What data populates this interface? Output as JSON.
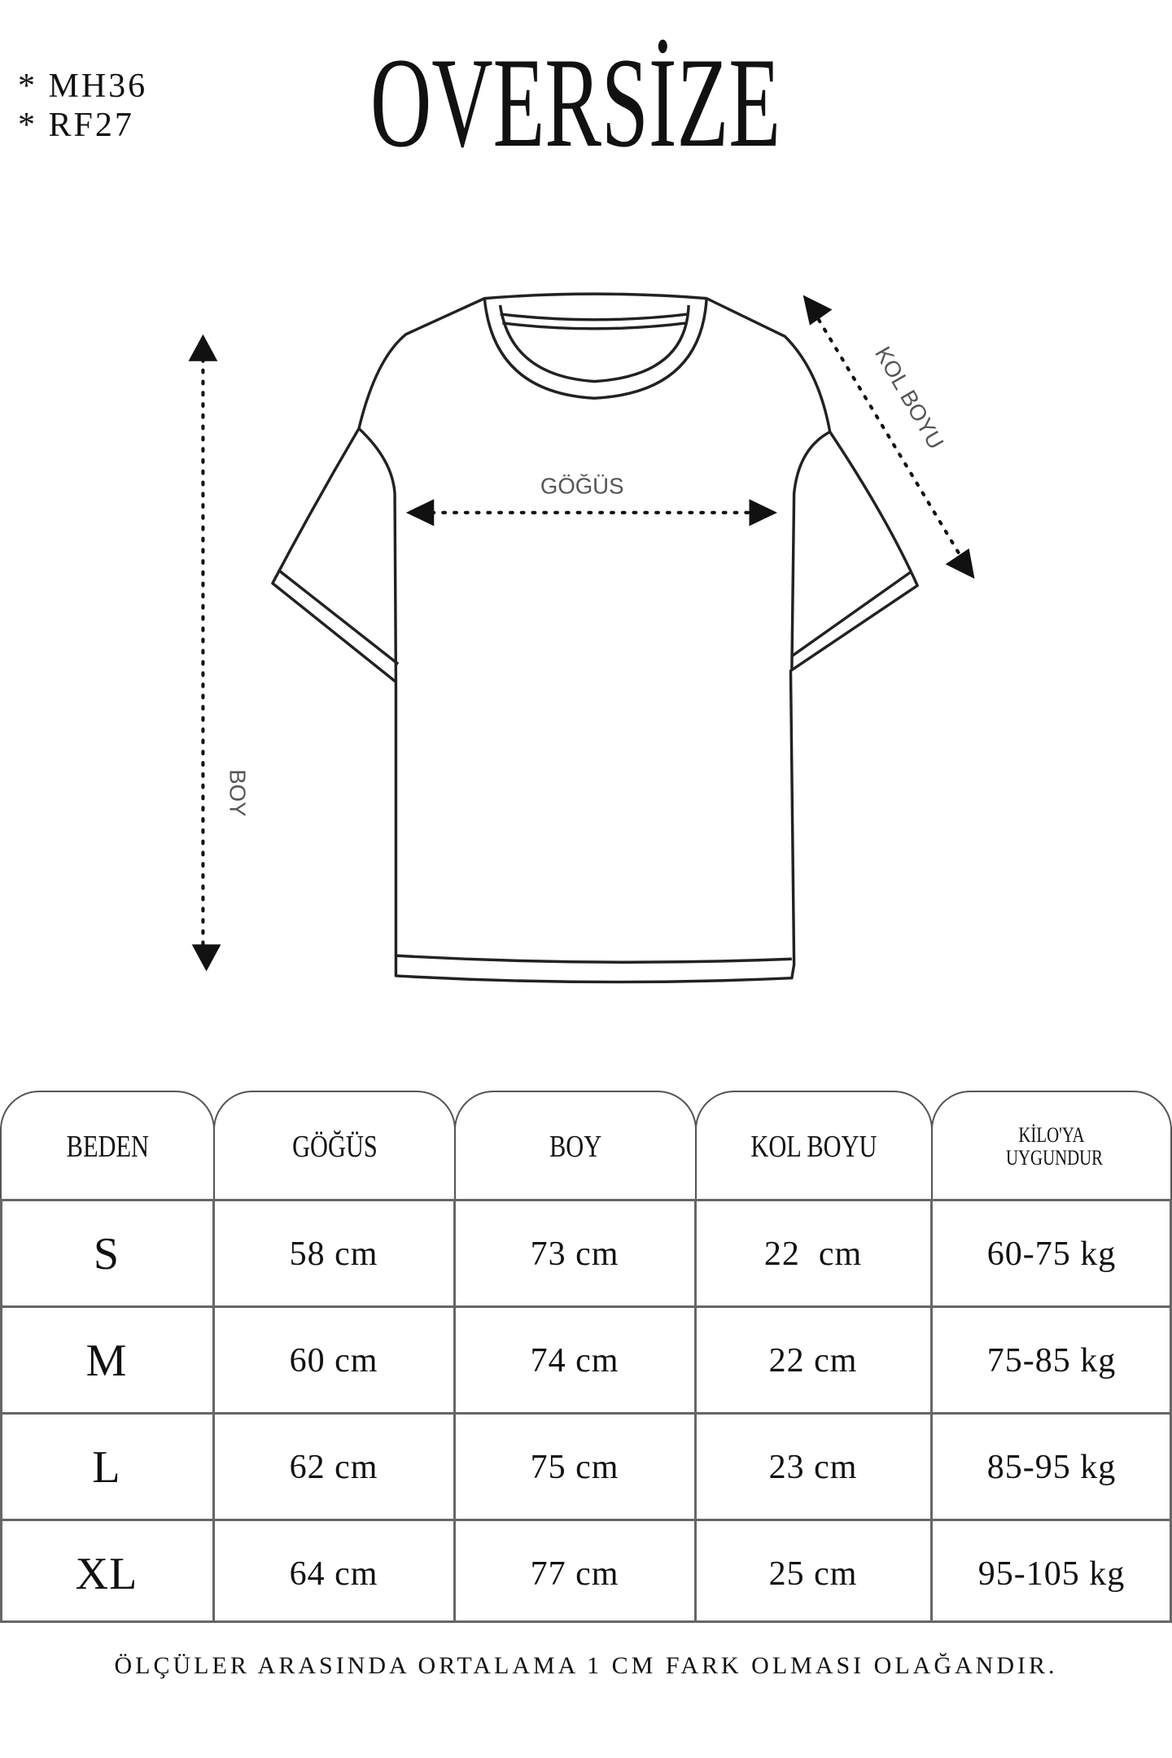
{
  "codes": [
    "* MH36",
    "* RF27"
  ],
  "title": "OVERSİZE",
  "diagram": {
    "length_label": "BOY",
    "chest_label": "GÖĞÜS",
    "sleeve_label": "KOL BOYU"
  },
  "table": {
    "headers": [
      "BEDEN",
      "GÖĞÜS",
      "BOY",
      "KOL BOYU",
      "KİLO'YA UYGUNDUR"
    ],
    "rows": [
      [
        "S",
        "58 cm",
        "73 cm",
        "22  cm",
        "60-75 kg"
      ],
      [
        "M",
        "60 cm",
        "74 cm",
        "22 cm",
        "75-85 kg"
      ],
      [
        "L",
        "62 cm",
        "75 cm",
        "23 cm",
        "85-95 kg"
      ],
      [
        "XL",
        "64 cm",
        "77 cm",
        "25 cm",
        "95-105 kg"
      ]
    ]
  },
  "note": "ÖLÇÜLER ARASINDA ORTALAMA 1 CM FARK OLMASI OLAĞANDIR."
}
